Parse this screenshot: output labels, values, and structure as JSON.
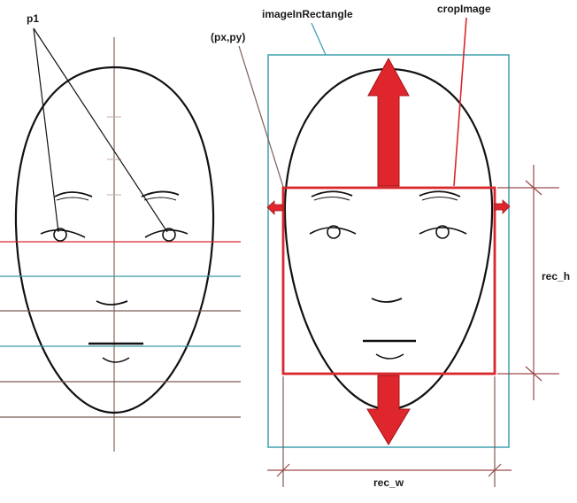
{
  "labels": {
    "p1": "p1",
    "image_in_rectangle": "imageInRectangle",
    "crop_image": "cropImage",
    "px_py": "(px,py)",
    "rec_h": "rec_h",
    "rec_w": "rec_w"
  },
  "colors": {
    "outline": "#111111",
    "crop_red": "#d9272e",
    "image_rect_cyan": "#4aa6b5",
    "guide_brown": "#7a5c55",
    "guide_teal": "#3a9aa8",
    "center_axis": "#8a7068",
    "dim_line": "#9a4a4a"
  }
}
